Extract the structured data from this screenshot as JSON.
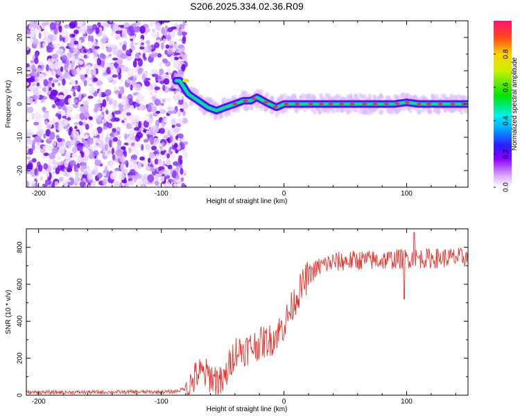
{
  "title": "S206.2025.334.02.36.R09",
  "chart_data": [
    {
      "type": "heatmap",
      "id": "spectrogram",
      "xlabel": "Height of straight line (km)",
      "ylabel": "Frequency (Hz)",
      "xlim": [
        -210,
        150
      ],
      "ylim": [
        -25,
        25
      ],
      "xticks": [
        -200,
        -100,
        0,
        100
      ],
      "yticks": [
        20,
        10,
        0,
        -10,
        -20
      ],
      "colorbar": {
        "label": "Normalized spectral amplitude",
        "range": [
          0.0,
          1.0
        ],
        "ticks": [
          0.0,
          0.2,
          0.4,
          0.6,
          0.8
        ]
      },
      "noise_region_x": [
        -210,
        -80
      ],
      "ridge": [
        [
          -85,
          7
        ],
        [
          -78,
          3
        ],
        [
          -70,
          1
        ],
        [
          -62,
          -1
        ],
        [
          -55,
          -2
        ],
        [
          -48,
          -1
        ],
        [
          -40,
          0
        ],
        [
          -33,
          1
        ],
        [
          -27,
          1
        ],
        [
          -22,
          2
        ],
        [
          -17,
          1
        ],
        [
          -12,
          0
        ],
        [
          -6,
          -1
        ],
        [
          0,
          0
        ],
        [
          10,
          0
        ],
        [
          20,
          0
        ],
        [
          30,
          0
        ],
        [
          40,
          0
        ],
        [
          50,
          0
        ],
        [
          60,
          0
        ],
        [
          70,
          0
        ],
        [
          80,
          0
        ],
        [
          90,
          0
        ],
        [
          100,
          0.5
        ],
        [
          110,
          0
        ],
        [
          120,
          0
        ],
        [
          130,
          0
        ],
        [
          140,
          0
        ],
        [
          150,
          0
        ]
      ]
    },
    {
      "type": "line",
      "id": "snr",
      "xlabel": "Height of straight line (km)",
      "ylabel": "SNR (10 * v/v)",
      "xlim": [
        -210,
        150
      ],
      "ylim": [
        0,
        900
      ],
      "xticks": [
        -200,
        -100,
        0,
        100
      ],
      "yticks": [
        0,
        200,
        400,
        600,
        800
      ],
      "color": "#e8332c",
      "trend": [
        [
          -210,
          15
        ],
        [
          -90,
          18
        ],
        [
          -78,
          40
        ],
        [
          -70,
          120
        ],
        [
          -62,
          110
        ],
        [
          -50,
          60
        ],
        [
          -40,
          240
        ],
        [
          -30,
          250
        ],
        [
          -20,
          280
        ],
        [
          -10,
          300
        ],
        [
          0,
          380
        ],
        [
          10,
          530
        ],
        [
          20,
          650
        ],
        [
          30,
          700
        ],
        [
          40,
          720
        ],
        [
          60,
          730
        ],
        [
          80,
          730
        ],
        [
          100,
          740
        ],
        [
          120,
          740
        ],
        [
          150,
          745
        ]
      ],
      "anomalies": [
        [
          98,
          520
        ],
        [
          106,
          880
        ]
      ]
    }
  ]
}
